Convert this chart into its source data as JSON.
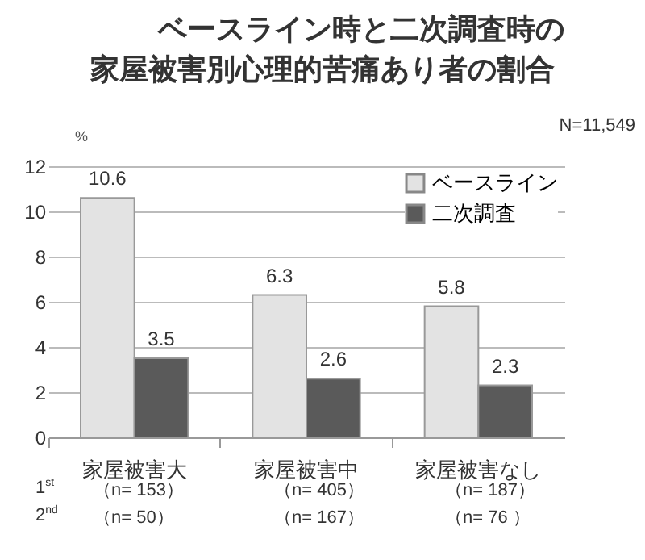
{
  "chart_data": {
    "type": "bar",
    "title": "ベースライン時と二次調査時の家屋被害別心理的苦痛あり者の割合",
    "ylabel": "%",
    "categories": [
      "家屋被害大",
      "家屋被害中",
      "家屋被害なし"
    ],
    "series": [
      {
        "name": "ベースライン",
        "color": "#e3e3e3",
        "values": [
          10.6,
          6.3,
          5.8
        ]
      },
      {
        "name": "二次調査",
        "color": "#5a5a5a",
        "values": [
          3.5,
          2.6,
          2.3
        ]
      }
    ],
    "ylim": [
      0,
      12
    ],
    "yticks": [
      0,
      2,
      4,
      6,
      8,
      10,
      12
    ],
    "grid": "y",
    "legend": "top right",
    "data_labels": true,
    "annotations": [
      "N=11,549",
      "1$^{st}$",
      "（n=  153）",
      "（n= 405）",
      "（n= 187）",
      "2$^{nd}$",
      "（n=  50）",
      "（n= 167）",
      "（n= 76 ）"
    ]
  }
}
